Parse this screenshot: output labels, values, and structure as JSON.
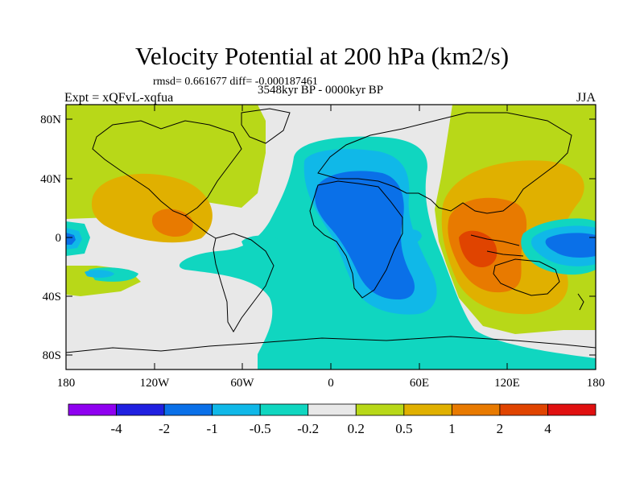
{
  "title": "Velocity Potential at 200 hPa (km2/s)",
  "stats": "rmsd= 0.661677 diff= -0.000187461",
  "period": "3548kyr BP - 0000kyr BP",
  "experiment": "Expt = xQFvL-xqfua",
  "season": "JJA",
  "lat_ticks": [
    "80N",
    "40N",
    "0",
    "40S",
    "80S"
  ],
  "lon_ticks": [
    "180",
    "120W",
    "60W",
    "0",
    "60E",
    "120E",
    "180"
  ],
  "colorbar": {
    "labels": [
      "-4",
      "-2",
      "-1",
      "-0.5",
      "-0.2",
      "0.2",
      "0.5",
      "1",
      "2",
      "4"
    ],
    "colors": [
      "#8f00f0",
      "#2020e0",
      "#0a70e8",
      "#10b8e8",
      "#10d6c0",
      "#e8e8e8",
      "#b8d818",
      "#e0b000",
      "#e87a00",
      "#e04400",
      "#e01010"
    ]
  },
  "palette": {
    "light_gray": "#e8e8e8",
    "teal": "#10d6c0",
    "light_blue": "#10b8e8",
    "blue": "#0a70e8",
    "deep_blue": "#2020e0",
    "yellow_green": "#b8d818",
    "orange_yellow": "#e0b000",
    "orange": "#e87a00",
    "red_orange": "#e04400",
    "red": "#e01010"
  }
}
